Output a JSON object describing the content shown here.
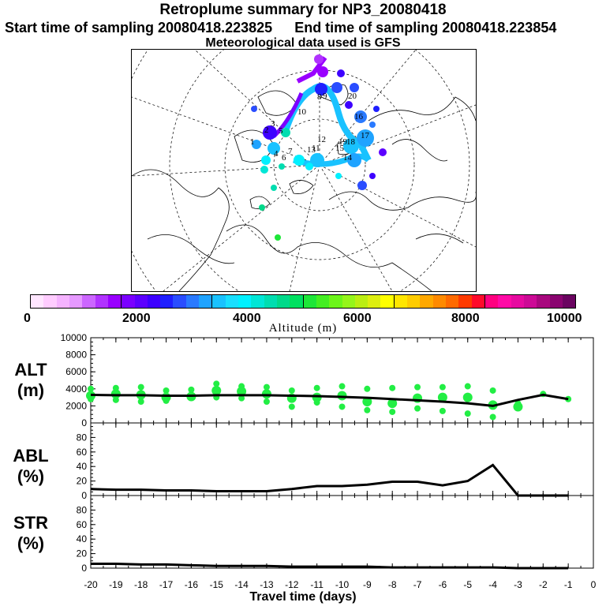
{
  "header": {
    "title": "Retroplume summary for NP3_20080418",
    "start_label": "Start time of sampling 20080418.223825",
    "end_label": "End time of sampling 20080418.223854",
    "met_label": "Meteorological data used is GFS"
  },
  "colorbar": {
    "label": "Altitude (m)",
    "ticks": [
      "0",
      "2000",
      "4000",
      "6000",
      "8000",
      "10000"
    ],
    "colors": [
      "#ffe6ff",
      "#ffccff",
      "#f5b3ff",
      "#e699ff",
      "#cc66ff",
      "#b133ff",
      "#9900ff",
      "#7a00ff",
      "#5c00ff",
      "#3d00ff",
      "#1f1fff",
      "#2a4dff",
      "#2a7aff",
      "#1fa3ff",
      "#19c2ff",
      "#19dfff",
      "#00f0ff",
      "#00e6d6",
      "#00ddb0",
      "#00d98a",
      "#00e060",
      "#1ee638",
      "#44ee22",
      "#6cf51a",
      "#95f51a",
      "#bbee12",
      "#ddee10",
      "#ffff00",
      "#ffe600",
      "#ffcc00",
      "#ffa800",
      "#ff8a00",
      "#ff6a00",
      "#ff3a00",
      "#ff0a2a",
      "#ff0080",
      "#ff0aa6",
      "#e60aa0",
      "#cc0a96",
      "#a8087e",
      "#8a0470",
      "#6a0460"
    ]
  },
  "map": {
    "traj_labels": [
      "1",
      "2",
      "3",
      "4",
      "5",
      "6",
      "7",
      "8",
      "9",
      "10",
      "11",
      "12",
      "13",
      "14",
      "15",
      "16",
      "17",
      "18",
      "19",
      "20"
    ]
  },
  "chart_data": [
    {
      "type": "line",
      "panel": "ALT",
      "ylabel_lines": [
        "ALT",
        "(m)"
      ],
      "ylim": [
        0,
        10000
      ],
      "yticks": [
        "0",
        "2000",
        "4000",
        "6000",
        "8000",
        "10000"
      ],
      "x": [
        -20,
        -19,
        -18,
        -17,
        -16,
        -15,
        -14,
        -13,
        -12,
        -11,
        -10,
        -9,
        -8,
        -7,
        -6,
        -5,
        -4,
        -3,
        -2,
        -1
      ],
      "values": [
        3300,
        3250,
        3250,
        3200,
        3200,
        3250,
        3250,
        3250,
        3200,
        3150,
        3050,
        2950,
        2800,
        2650,
        2500,
        2300,
        2000,
        2700,
        3300,
        2800
      ],
      "scatter": [
        {
          "x": -20,
          "y": [
            4000,
            3200,
            2800
          ]
        },
        {
          "x": -19,
          "y": [
            4100,
            3400,
            2700
          ]
        },
        {
          "x": -18,
          "y": [
            4200,
            3300,
            2500
          ]
        },
        {
          "x": -17,
          "y": [
            3800,
            3000,
            2600
          ]
        },
        {
          "x": -16,
          "y": [
            3900,
            3100
          ]
        },
        {
          "x": -15,
          "y": [
            4600,
            3800,
            3000
          ]
        },
        {
          "x": -14,
          "y": [
            4300,
            3700,
            2900
          ]
        },
        {
          "x": -13,
          "y": [
            4200,
            3400,
            2500
          ]
        },
        {
          "x": -12,
          "y": [
            3800,
            2900,
            1900
          ]
        },
        {
          "x": -11,
          "y": [
            4100,
            3000,
            2400
          ]
        },
        {
          "x": -10,
          "y": [
            4300,
            3200,
            1900
          ]
        },
        {
          "x": -9,
          "y": [
            4000,
            2500,
            1500
          ]
        },
        {
          "x": -8,
          "y": [
            4100,
            2300,
            1300
          ]
        },
        {
          "x": -7,
          "y": [
            4200,
            2900,
            1700
          ]
        },
        {
          "x": -6,
          "y": [
            4200,
            3000,
            1400
          ]
        },
        {
          "x": -5,
          "y": [
            4300,
            3000,
            1100
          ]
        },
        {
          "x": -4,
          "y": [
            3800,
            2100,
            700
          ]
        },
        {
          "x": -3,
          "y": [
            2300,
            1900
          ]
        },
        {
          "x": -2,
          "y": [
            3400
          ]
        },
        {
          "x": -1,
          "y": [
            2800
          ]
        }
      ]
    },
    {
      "type": "line",
      "panel": "ABL",
      "ylabel_lines": [
        "ABL",
        "(%)"
      ],
      "ylim": [
        0,
        100
      ],
      "yticks": [
        "0",
        "20",
        "40",
        "60",
        "80"
      ],
      "x": [
        -20,
        -19,
        -18,
        -17,
        -16,
        -15,
        -14,
        -13,
        -12,
        -11,
        -10,
        -9,
        -8,
        -7,
        -6,
        -5,
        -4,
        -3,
        -2,
        -1
      ],
      "values": [
        9,
        8,
        8,
        7,
        7,
        6,
        6,
        6,
        9,
        13,
        13,
        15,
        19,
        19,
        14,
        20,
        42,
        0,
        0,
        0
      ]
    },
    {
      "type": "line",
      "panel": "STR",
      "ylabel_lines": [
        "STR",
        "(%)"
      ],
      "ylim": [
        0,
        100
      ],
      "yticks": [
        "0",
        "20",
        "40",
        "60",
        "80"
      ],
      "x": [
        -20,
        -19,
        -18,
        -17,
        -16,
        -15,
        -14,
        -13,
        -12,
        -11,
        -10,
        -9,
        -8,
        -7,
        -6,
        -5,
        -4,
        -3,
        -2,
        -1
      ],
      "values": [
        6,
        6,
        5,
        5,
        4,
        3,
        3,
        3,
        2,
        2,
        2,
        2,
        1,
        1,
        1,
        1,
        1,
        0,
        0,
        0
      ]
    }
  ],
  "xaxis": {
    "xlabel": "Travel time (days)",
    "xticks": [
      "-20",
      "-19",
      "-18",
      "-17",
      "-16",
      "-15",
      "-14",
      "-13",
      "-12",
      "-11",
      "-10",
      "-9",
      "-8",
      "-7",
      "-6",
      "-5",
      "-4",
      "-3",
      "-2",
      "-1",
      "0"
    ]
  }
}
